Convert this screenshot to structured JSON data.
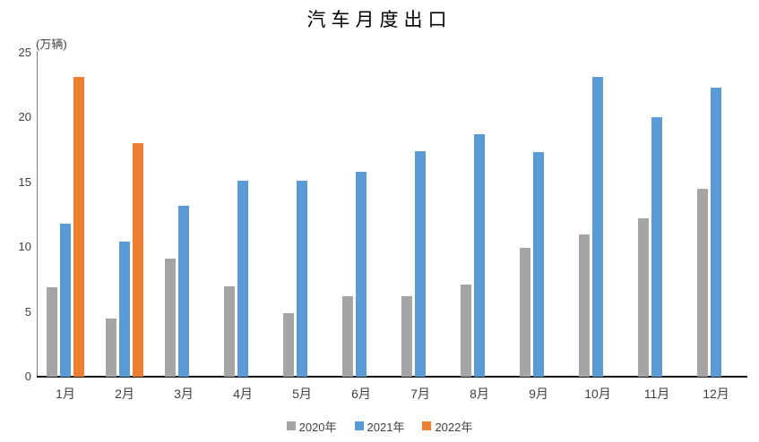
{
  "chart_data": {
    "type": "bar",
    "title": "汽车月度出口",
    "unit_label": "(万辆)",
    "categories": [
      "1月",
      "2月",
      "3月",
      "4月",
      "5月",
      "6月",
      "7月",
      "8月",
      "9月",
      "10月",
      "11月",
      "12月"
    ],
    "series": [
      {
        "name": "2020年",
        "color": "#A5A5A5",
        "values": [
          6.9,
          4.5,
          9.1,
          7.0,
          4.9,
          6.2,
          6.2,
          7.1,
          9.9,
          11.0,
          12.2,
          14.5
        ]
      },
      {
        "name": "2021年",
        "color": "#5B9BD5",
        "values": [
          11.8,
          10.4,
          13.2,
          15.1,
          15.1,
          15.8,
          17.4,
          18.7,
          17.3,
          23.1,
          20.0,
          22.3
        ]
      },
      {
        "name": "2022年",
        "color": "#ED7D31",
        "values": [
          23.1,
          18.0,
          null,
          null,
          null,
          null,
          null,
          null,
          null,
          null,
          null,
          null
        ]
      }
    ],
    "y_ticks": [
      0,
      5,
      10,
      15,
      20,
      25
    ],
    "ylim": [
      0,
      25
    ],
    "xlabel": "",
    "ylabel": "",
    "grid": false,
    "legend_position": "bottom",
    "axis_colors": {
      "y_axis_line": "#808080",
      "x_axis_line": "#161616",
      "tick_text": "#404040"
    }
  }
}
